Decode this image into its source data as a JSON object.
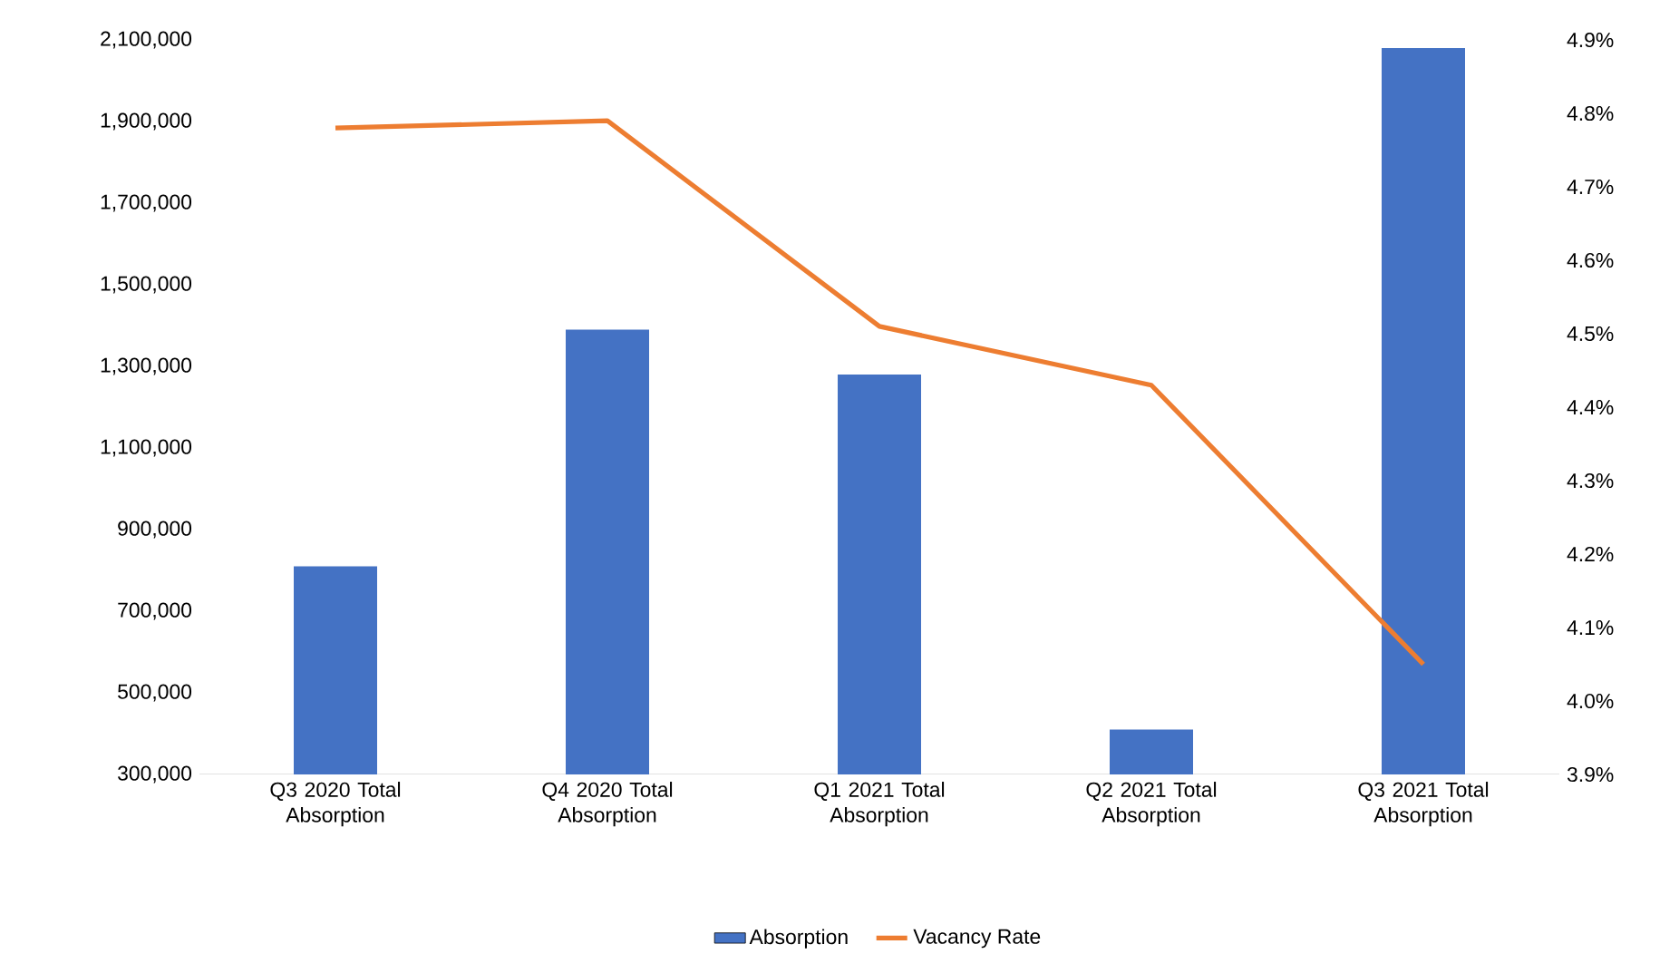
{
  "chart_data": {
    "type": "bar",
    "categories": [
      "Q3 2020 Total Absorption",
      "Q4 2020 Total Absorption",
      "Q1 2021 Total Absorption",
      "Q2 2021 Total Absorption",
      "Q3 2021 Total Absorption"
    ],
    "series": [
      {
        "name": "Absorption",
        "color": "#4472c4",
        "values": [
          810000,
          1390000,
          1280000,
          410000,
          2080000
        ]
      },
      {
        "name": "Vacancy Rate",
        "type": "line",
        "axis": "y2",
        "color": "#ed7d31",
        "values": [
          4.78,
          4.79,
          4.51,
          4.43,
          4.05
        ]
      }
    ],
    "ylim": [
      300000,
      2100000
    ],
    "yticks": [
      {
        "value": 300000,
        "label": "300,000"
      },
      {
        "value": 500000,
        "label": "500,000"
      },
      {
        "value": 700000,
        "label": "700,000"
      },
      {
        "value": 900000,
        "label": "900,000"
      },
      {
        "value": 1100000,
        "label": "1,100,000"
      },
      {
        "value": 1300000,
        "label": "1,300,000"
      },
      {
        "value": 1500000,
        "label": "1,500,000"
      },
      {
        "value": 1700000,
        "label": "1,700,000"
      },
      {
        "value": 1900000,
        "label": "1,900,000"
      },
      {
        "value": 2100000,
        "label": "2,100,000"
      }
    ],
    "y2lim": [
      3.9,
      4.9
    ],
    "y2ticks": [
      {
        "value": 3.9,
        "label": "3.9%"
      },
      {
        "value": 4.0,
        "label": "4.0%"
      },
      {
        "value": 4.1,
        "label": "4.1%"
      },
      {
        "value": 4.2,
        "label": "4.2%"
      },
      {
        "value": 4.3,
        "label": "4.3%"
      },
      {
        "value": 4.4,
        "label": "4.4%"
      },
      {
        "value": 4.5,
        "label": "4.5%"
      },
      {
        "value": 4.6,
        "label": "4.6%"
      },
      {
        "value": 4.7,
        "label": "4.7%"
      },
      {
        "value": 4.8,
        "label": "4.8%"
      },
      {
        "value": 4.9,
        "label": "4.9%"
      }
    ],
    "legend": "bottom"
  }
}
